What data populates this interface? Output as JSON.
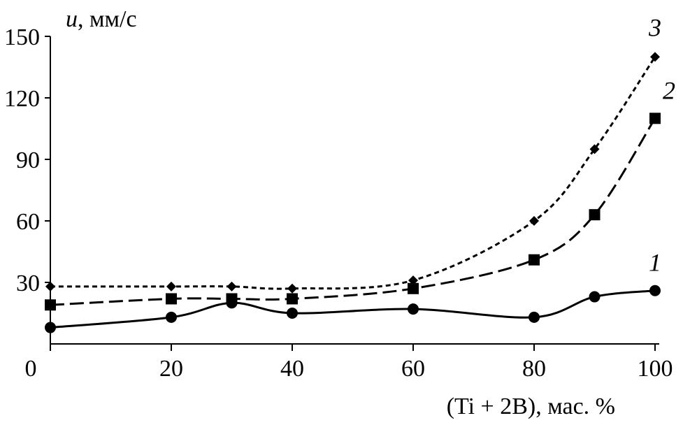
{
  "chart_data": {
    "type": "line",
    "title": "",
    "ylabel_symbol": "u",
    "ylabel_unit": ", мм/с",
    "xlabel": "(Ti + 2B), мас. %",
    "xlim": [
      0,
      100
    ],
    "ylim": [
      0,
      150
    ],
    "x_ticks": [
      0,
      20,
      40,
      60,
      80,
      100
    ],
    "y_ticks": [
      30,
      60,
      90,
      120,
      150
    ],
    "x_tick_labels": [
      "0",
      "20",
      "40",
      "60",
      "80",
      "100"
    ],
    "y_tick_labels": [
      "30",
      "60",
      "90",
      "120",
      "150"
    ],
    "grid": false,
    "series": [
      {
        "name": "1",
        "line_style": "solid",
        "marker": "circle",
        "x": [
          0,
          20,
          30,
          40,
          60,
          80,
          90,
          100
        ],
        "y": [
          8,
          13,
          20,
          15,
          17,
          13,
          23,
          26
        ]
      },
      {
        "name": "2",
        "line_style": "dashed",
        "marker": "square",
        "x": [
          0,
          20,
          30,
          40,
          60,
          80,
          90,
          100
        ],
        "y": [
          19,
          22,
          22,
          22,
          27,
          41,
          63,
          110
        ]
      },
      {
        "name": "3",
        "line_style": "dotted",
        "marker": "diamond",
        "x": [
          0,
          20,
          30,
          40,
          60,
          80,
          90,
          100
        ],
        "y": [
          28,
          28,
          28,
          27,
          31,
          60,
          95,
          140
        ]
      }
    ]
  }
}
